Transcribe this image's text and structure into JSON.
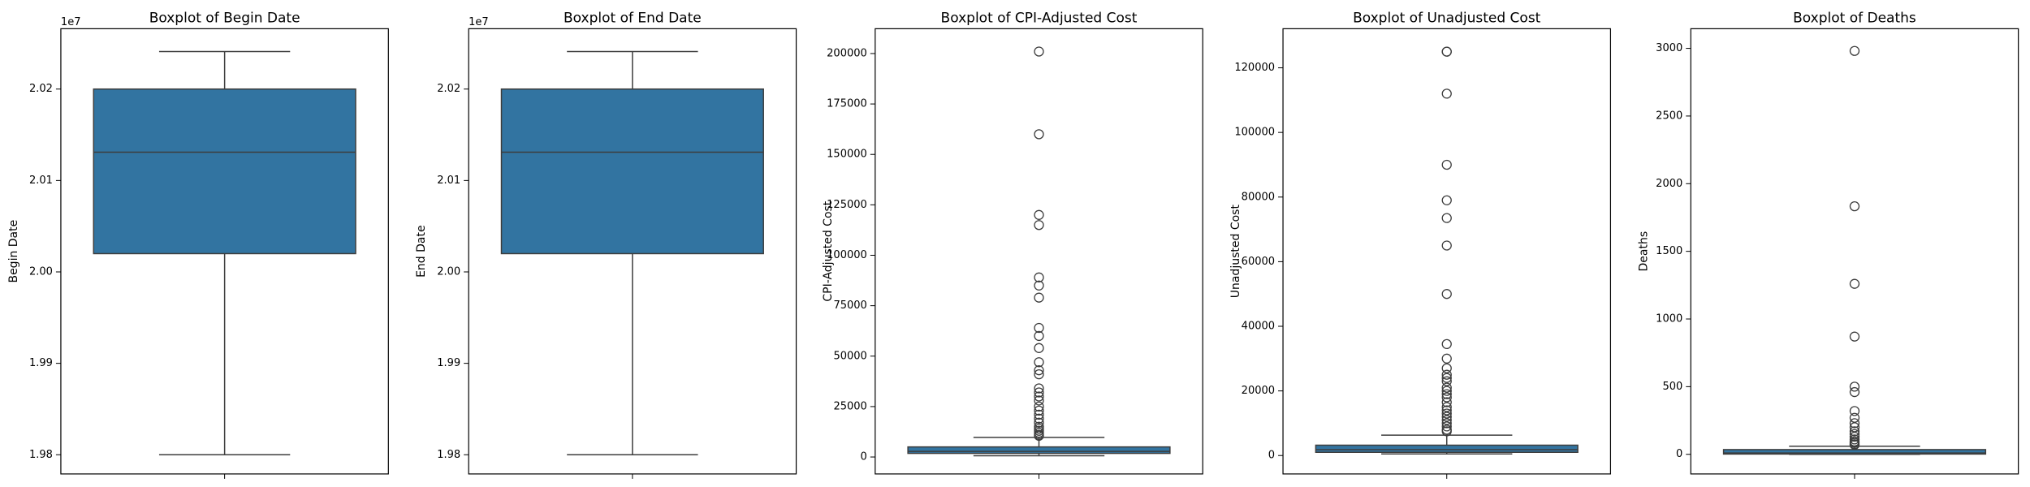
{
  "chart_data": [
    {
      "type": "box",
      "title": "Boxplot of Begin Date",
      "ylabel": "Begin Date",
      "offset_label": "1e7",
      "whisker_low": 1.98,
      "q1": 2.002,
      "median": 2.0131,
      "q3": 2.02,
      "whisker_high": 2.0241,
      "outliers": [],
      "color": "#3274a1",
      "ylim": [
        1.9779,
        2.0266
      ],
      "yticks": [
        1.98,
        1.99,
        {
          "value": 2.0,
          "label": "2.00"
        },
        2.01,
        2.02
      ]
    },
    {
      "type": "box",
      "title": "Boxplot of End Date",
      "ylabel": "End Date",
      "offset_label": "1e7",
      "whisker_low": 1.98,
      "q1": 2.002,
      "median": 2.0131,
      "q3": 2.02,
      "whisker_high": 2.0241,
      "outliers": [],
      "color": "#3274a1",
      "ylim": [
        1.9779,
        2.0266
      ],
      "yticks": [
        1.98,
        1.99,
        {
          "value": 2.0,
          "label": "2.00"
        },
        2.01,
        2.02
      ]
    },
    {
      "type": "box",
      "title": "Boxplot of CPI-Adjusted Cost",
      "ylabel": "CPI-Adjusted Cost",
      "whisker_low": 600,
      "q1": 1800,
      "median": 2800,
      "q3": 5000,
      "whisker_high": 9700,
      "outliers": [
        201000,
        160000,
        120000,
        115000,
        89000,
        85000,
        79000,
        64000,
        60000,
        54000,
        47000,
        43000,
        41000,
        34000,
        32000,
        30000,
        28000,
        25000,
        23000,
        21000,
        19000,
        17000,
        15000,
        14000,
        13000,
        12000,
        11000,
        10500
      ],
      "color": "#3274a1",
      "ylim": [
        -8400,
        212300
      ],
      "yticks": [
        0,
        25000,
        50000,
        75000,
        100000,
        125000,
        150000,
        175000,
        200000
      ]
    },
    {
      "type": "box",
      "title": "Boxplot of Unadjusted Cost",
      "ylabel": "Unadjusted Cost",
      "whisker_low": 500,
      "q1": 1000,
      "median": 1800,
      "q3": 3200,
      "whisker_high": 6300,
      "outliers": [
        125000,
        125000,
        112000,
        90000,
        79000,
        73500,
        65000,
        50000,
        34500,
        30000,
        27000,
        25000,
        24000,
        23000,
        21000,
        20000,
        19000,
        18000,
        16500,
        15000,
        14000,
        13000,
        12000,
        11000,
        10000,
        9000,
        8000,
        7500
      ],
      "color": "#3274a1",
      "ylim": [
        -5700,
        132100
      ],
      "yticks": [
        0,
        20000,
        40000,
        60000,
        80000,
        100000,
        120000
      ]
    },
    {
      "type": "box",
      "title": "Boxplot of Deaths",
      "ylabel": "Deaths",
      "whisker_low": 0,
      "q1": 2,
      "median": 10,
      "q3": 35,
      "whisker_high": 60,
      "outliers": [
        2981,
        1833,
        1260,
        870,
        500,
        460,
        320,
        270,
        230,
        200,
        170,
        150,
        130,
        110,
        95,
        85,
        75,
        70
      ],
      "color": "#3274a1",
      "ylim": [
        -145,
        3145
      ],
      "yticks": [
        0,
        500,
        1000,
        1500,
        2000,
        2500,
        3000
      ]
    }
  ]
}
